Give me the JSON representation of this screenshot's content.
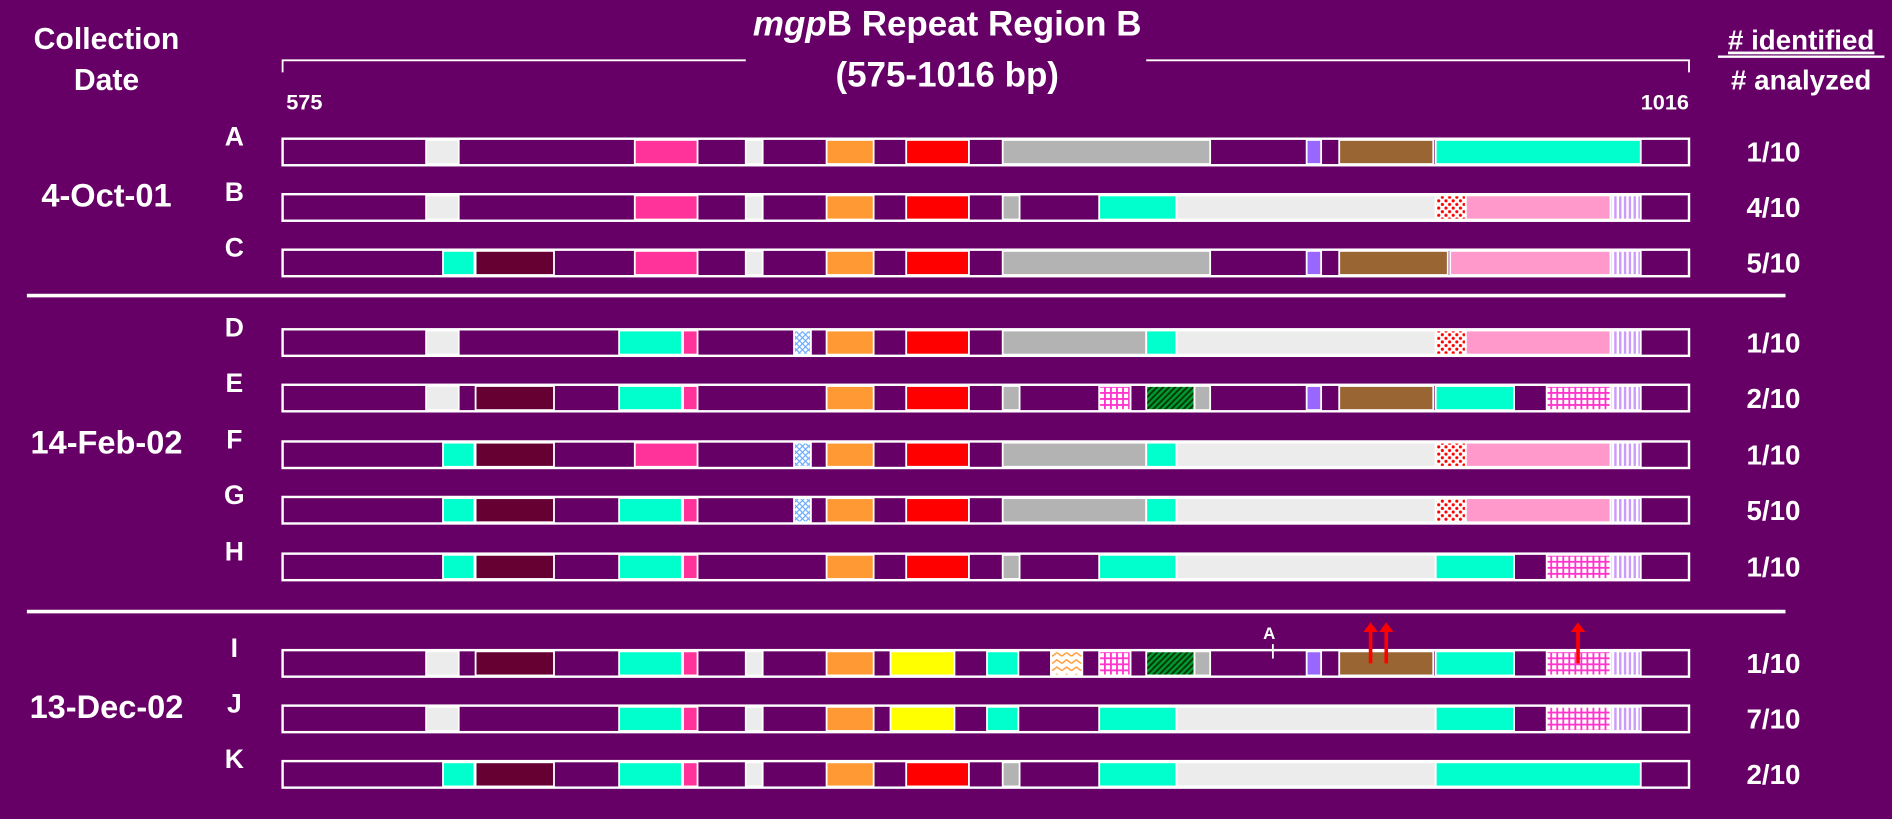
{
  "header": {
    "collection_label": [
      "Collection",
      "Date"
    ],
    "title_italic": "mgp",
    "title_rest": "B Repeat Region B",
    "subtitle": "(575-1016 bp)",
    "start": "575",
    "end": "1016",
    "identified_label": "# identified",
    "analyzed_label": "# analyzed"
  },
  "groups": [
    {
      "date": "4-Oct-01",
      "rows": [
        {
          "label": "A",
          "count": "1/10"
        },
        {
          "label": "B",
          "count": "4/10"
        },
        {
          "label": "C",
          "count": "5/10"
        }
      ]
    },
    {
      "date": "14-Feb-02",
      "rows": [
        {
          "label": "D",
          "count": "1/10"
        },
        {
          "label": "E",
          "count": "2/10"
        },
        {
          "label": "F",
          "count": "1/10"
        },
        {
          "label": "G",
          "count": "5/10"
        },
        {
          "label": "H",
          "count": "1/10"
        }
      ]
    },
    {
      "date": "13-Dec-02",
      "rows": [
        {
          "label": "I",
          "count": "1/10"
        },
        {
          "label": "J",
          "count": "7/10"
        },
        {
          "label": "K",
          "count": "2/10"
        }
      ]
    }
  ],
  "annotation": "A"
}
